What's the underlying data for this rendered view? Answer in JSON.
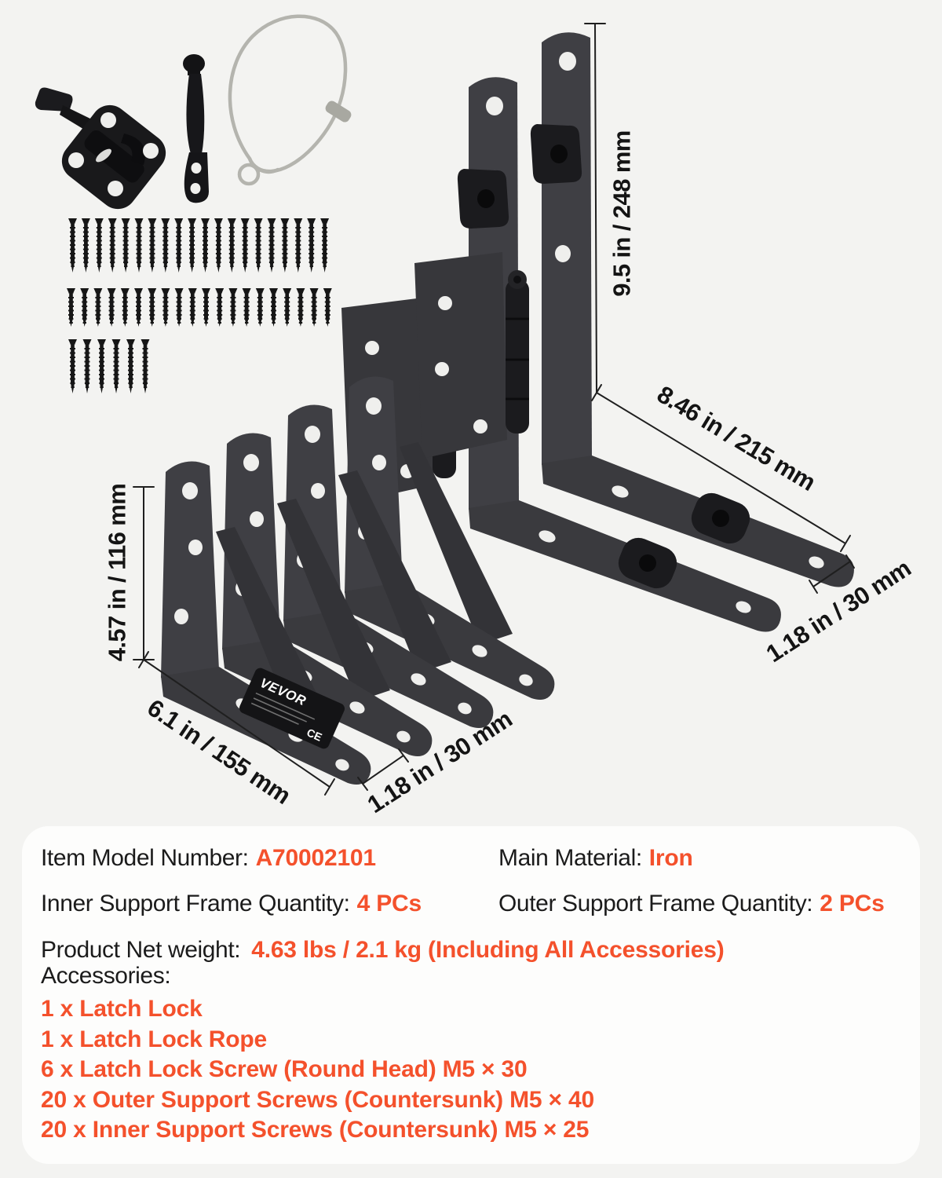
{
  "page": {
    "background": "#F3F3F1"
  },
  "collage": {
    "dimensions": {
      "outer_frame_height": "9.5 in / 248 mm",
      "outer_frame_length": "8.46 in / 215 mm",
      "outer_frame_width": "1.18 in / 30 mm",
      "inner_frame_height": "4.57 in / 116 mm",
      "inner_frame_length": "6.1 in / 155 mm",
      "inner_frame_width": "1.18 in / 30 mm"
    },
    "label": {
      "brand": "VEVOR",
      "ce_mark": "CE"
    },
    "screw_rows": {
      "outer_count": 20,
      "inner_count": 20,
      "latch_count": 6
    }
  },
  "specs": {
    "item_model_label": "Item Model Number:",
    "item_model_value": "A70002101",
    "material_label": "Main Material:",
    "material_value": "Iron",
    "inner_qty_label": "Inner Support Frame Quantity:",
    "inner_qty_value": "4 PCs",
    "outer_qty_label": "Outer Support Frame Quantity:",
    "outer_qty_value": "2 PCs",
    "weight_label": "Product Net weight:",
    "weight_value": "4.63 lbs / 2.1 kg (Including All Accessories)",
    "accessories_label": "Accessories:",
    "accessories": [
      "1 x Latch Lock",
      "1 x Latch Lock Rope",
      "6 x Latch Lock Screw (Round Head) M5 × 30",
      "20 x Outer Support Screws (Countersunk) M5 × 40",
      "20 x Inner Support Screws (Countersunk) M5 × 25"
    ]
  },
  "colors": {
    "accent": "#F4512C",
    "text": "#1B1B1B",
    "page_bg": "#F3F3F1",
    "card_bg": "#FDFDFC",
    "metal": "#3F3F44",
    "metal_dark": "#1B1B1E",
    "wire": "#B4B4AE"
  }
}
